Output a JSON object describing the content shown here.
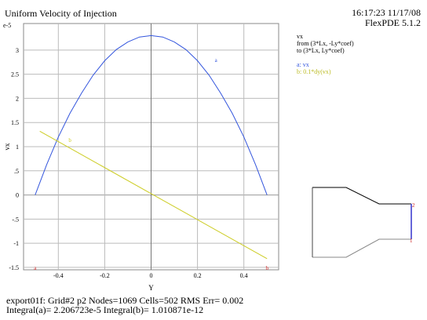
{
  "header": {
    "title": "Uniform Velocity of Injection",
    "timestamp": "16:17:23 11/17/08",
    "app_version": "FlexPDE 5.1.2"
  },
  "legend": {
    "quantity": "vx",
    "from_label": "from (3*Lx, -Ly*coef)",
    "to_label": "to (3*Lx, Ly*coef)",
    "series_a": "a: vx",
    "series_b": "b: 0.1*dy(vx)"
  },
  "footer": {
    "line1": "export01f:  Grid#2  p2  Nodes=1069 Cells=502 RMS Err= 0.002",
    "line2": "Integral(a)=  2.206723e-5 Integral(b)=  1.010871e-12"
  },
  "chart_data": {
    "type": "line",
    "xlabel": "Y",
    "ylabel": "vx",
    "exponent_label": "e-5",
    "xlim": [
      -0.55,
      0.55
    ],
    "ylim": [
      -1.55,
      3.55
    ],
    "x_ticks": [
      -0.4,
      -0.2,
      0,
      0.2,
      0.4
    ],
    "x_tick_labels": [
      "-0.4",
      "-0.2",
      "0",
      "0.2",
      "0.4"
    ],
    "y_ticks": [
      -1.5,
      -1,
      -0.5,
      0,
      0.5,
      1,
      1.5,
      2,
      2.5,
      3
    ],
    "y_tick_labels": [
      "-1.5",
      "-1",
      "-.5",
      "0",
      ".5",
      "1",
      "1.5",
      "2",
      "2.5",
      "3"
    ],
    "grid": true,
    "series": [
      {
        "name": "a: vx",
        "marker": "a",
        "color": "#3355dd",
        "x": [
          -0.5,
          -0.45,
          -0.4,
          -0.35,
          -0.3,
          -0.25,
          -0.2,
          -0.15,
          -0.1,
          -0.05,
          0,
          0.05,
          0.1,
          0.15,
          0.2,
          0.25,
          0.3,
          0.35,
          0.4,
          0.45,
          0.5
        ],
        "y": [
          0,
          0.63,
          1.2,
          1.69,
          2.11,
          2.48,
          2.78,
          3.01,
          3.17,
          3.27,
          3.3,
          3.27,
          3.17,
          3.01,
          2.78,
          2.48,
          2.11,
          1.69,
          1.2,
          0.63,
          0
        ]
      },
      {
        "name": "b: 0.1*dy(vx)",
        "marker": "b",
        "color": "#cccc22",
        "x": [
          -0.48,
          0.5
        ],
        "y": [
          1.32,
          -1.32
        ]
      }
    ]
  },
  "domain_shape": {
    "caption": ""
  }
}
